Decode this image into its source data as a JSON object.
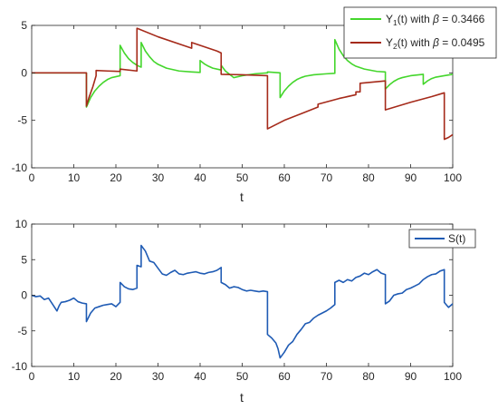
{
  "chart_data": [
    {
      "type": "line",
      "xlabel": "t",
      "ylabel": "",
      "xlim": [
        0,
        100
      ],
      "ylim": [
        -10,
        5
      ],
      "x_ticks": [
        0,
        10,
        20,
        30,
        40,
        50,
        60,
        70,
        80,
        90,
        100
      ],
      "y_ticks": [
        -10,
        -5,
        0,
        5
      ],
      "x_tick_labels": [
        "0",
        "10",
        "20",
        "30",
        "40",
        "50",
        "60",
        "70",
        "80",
        "90",
        "100"
      ],
      "y_tick_labels": [
        "-10",
        "-5",
        "0",
        "5"
      ],
      "grid": false,
      "legend_position": "top-right",
      "series": [
        {
          "name_parts": [
            "Y",
            "1",
            "(t) with ",
            "β",
            " = 0.3466"
          ],
          "color": "#44d62c",
          "points": [
            [
              0,
              0
            ],
            [
              13,
              0
            ],
            [
              13,
              -3.6
            ],
            [
              14,
              -2.6
            ],
            [
              15,
              -1.9
            ],
            [
              16,
              -1.4
            ],
            [
              17,
              -1.0
            ],
            [
              18,
              -0.7
            ],
            [
              19,
              -0.5
            ],
            [
              21,
              -0.3
            ],
            [
              21,
              2.9
            ],
            [
              22,
              2.1
            ],
            [
              23,
              1.5
            ],
            [
              24,
              1.1
            ],
            [
              25,
              0.8
            ],
            [
              26,
              0.6
            ],
            [
              26,
              3.2
            ],
            [
              27,
              2.3
            ],
            [
              28,
              1.7
            ],
            [
              29,
              1.2
            ],
            [
              30,
              0.9
            ],
            [
              32,
              0.5
            ],
            [
              35,
              0.2
            ],
            [
              38,
              0.1
            ],
            [
              40,
              0.05
            ],
            [
              40,
              1.3
            ],
            [
              41,
              0.95
            ],
            [
              42,
              0.7
            ],
            [
              43,
              0.5
            ],
            [
              45,
              0.3
            ],
            [
              45,
              0.8
            ],
            [
              46,
              0.2
            ],
            [
              48,
              -0.5
            ],
            [
              50,
              -0.3
            ],
            [
              53,
              -0.1
            ],
            [
              56,
              0
            ],
            [
              56,
              0.1
            ],
            [
              59,
              0
            ],
            [
              59,
              -2.6
            ],
            [
              60,
              -1.9
            ],
            [
              61,
              -1.4
            ],
            [
              62,
              -1.0
            ],
            [
              63,
              -0.7
            ],
            [
              64,
              -0.5
            ],
            [
              65,
              -0.35
            ],
            [
              67,
              -0.2
            ],
            [
              70,
              -0.1
            ],
            [
              72,
              -0.05
            ],
            [
              72,
              3.5
            ],
            [
              73,
              2.5
            ],
            [
              74,
              1.8
            ],
            [
              75,
              1.3
            ],
            [
              76,
              0.95
            ],
            [
              77,
              0.7
            ],
            [
              79,
              0.4
            ],
            [
              82,
              0.15
            ],
            [
              84,
              0.1
            ],
            [
              84,
              -1.7
            ],
            [
              85,
              -1.25
            ],
            [
              86,
              -0.9
            ],
            [
              87,
              -0.65
            ],
            [
              88,
              -0.5
            ],
            [
              90,
              -0.3
            ],
            [
              93,
              -0.15
            ],
            [
              93,
              -1.2
            ],
            [
              94,
              -0.85
            ],
            [
              95,
              -0.6
            ],
            [
              96,
              -0.45
            ],
            [
              98,
              -0.3
            ],
            [
              100,
              -0.15
            ]
          ]
        },
        {
          "name_parts": [
            "Y",
            "2",
            "(t) with ",
            "β",
            " = 0.0495"
          ],
          "color": "#a52a1a",
          "points": [
            [
              0,
              0
            ],
            [
              13,
              0
            ],
            [
              13,
              -3.5
            ],
            [
              13.6,
              -2.6
            ],
            [
              14.5,
              -1.5
            ],
            [
              15.3,
              -0.3
            ],
            [
              15.3,
              0.25
            ],
            [
              18,
              0.2
            ],
            [
              21,
              0.15
            ],
            [
              21,
              0.4
            ],
            [
              25,
              0.2
            ],
            [
              25,
              4.7
            ],
            [
              30,
              3.8
            ],
            [
              36,
              2.9
            ],
            [
              38,
              2.6
            ],
            [
              38,
              3.2
            ],
            [
              44,
              2.3
            ],
            [
              45,
              2.1
            ],
            [
              45,
              -0.15
            ],
            [
              50,
              -0.2
            ],
            [
              56,
              -0.3
            ],
            [
              56,
              -5.9
            ],
            [
              60,
              -5.0
            ],
            [
              64,
              -4.3
            ],
            [
              68,
              -3.6
            ],
            [
              68,
              -3.3
            ],
            [
              73,
              -2.7
            ],
            [
              77,
              -2.3
            ],
            [
              77,
              -2.0
            ],
            [
              78,
              -2.0
            ],
            [
              78,
              -1.1
            ],
            [
              84,
              -0.85
            ],
            [
              84,
              -3.9
            ],
            [
              90,
              -3.1
            ],
            [
              95,
              -2.5
            ],
            [
              98,
              -2.1
            ],
            [
              98,
              -7.0
            ],
            [
              99,
              -6.8
            ],
            [
              100,
              -6.5
            ]
          ]
        }
      ]
    },
    {
      "type": "line",
      "xlabel": "t",
      "ylabel": "",
      "xlim": [
        0,
        100
      ],
      "ylim": [
        -10,
        10
      ],
      "x_ticks": [
        0,
        10,
        20,
        30,
        40,
        50,
        60,
        70,
        80,
        90,
        100
      ],
      "y_ticks": [
        -10,
        -5,
        0,
        5,
        10
      ],
      "x_tick_labels": [
        "0",
        "10",
        "20",
        "30",
        "40",
        "50",
        "60",
        "70",
        "80",
        "90",
        "100"
      ],
      "y_tick_labels": [
        "-10",
        "-5",
        "0",
        "5",
        "10"
      ],
      "grid": false,
      "legend_position": "top-right",
      "series": [
        {
          "name_parts": [
            "S(t)"
          ],
          "color": "#1f5bb4",
          "points": [
            [
              0,
              0
            ],
            [
              1,
              -0.2
            ],
            [
              2,
              -0.1
            ],
            [
              3,
              -0.6
            ],
            [
              4,
              -0.4
            ],
            [
              5,
              -1.3
            ],
            [
              6,
              -2.2
            ],
            [
              6.5,
              -1.5
            ],
            [
              7,
              -1.0
            ],
            [
              8,
              -0.9
            ],
            [
              9,
              -0.7
            ],
            [
              10,
              -0.4
            ],
            [
              11,
              -0.9
            ],
            [
              12,
              -1.1
            ],
            [
              13,
              -1.2
            ],
            [
              13,
              -3.7
            ],
            [
              14,
              -2.5
            ],
            [
              15,
              -1.8
            ],
            [
              16,
              -1.6
            ],
            [
              17,
              -1.4
            ],
            [
              18,
              -1.3
            ],
            [
              19,
              -1.2
            ],
            [
              20,
              -1.6
            ],
            [
              21,
              -1.0
            ],
            [
              21,
              1.8
            ],
            [
              22,
              1.2
            ],
            [
              23,
              0.9
            ],
            [
              24,
              0.8
            ],
            [
              25,
              1.0
            ],
            [
              25,
              4.2
            ],
            [
              26,
              4.0
            ],
            [
              26,
              7.0
            ],
            [
              27,
              6.2
            ],
            [
              28,
              4.8
            ],
            [
              29,
              4.6
            ],
            [
              30,
              3.8
            ],
            [
              31,
              3.0
            ],
            [
              32,
              2.8
            ],
            [
              33,
              3.2
            ],
            [
              34,
              3.5
            ],
            [
              35,
              3.0
            ],
            [
              36,
              2.9
            ],
            [
              37,
              3.1
            ],
            [
              38,
              3.2
            ],
            [
              39,
              3.3
            ],
            [
              40,
              3.1
            ],
            [
              41,
              3.0
            ],
            [
              42,
              3.2
            ],
            [
              43,
              3.3
            ],
            [
              44,
              3.5
            ],
            [
              45,
              3.9
            ],
            [
              45,
              1.8
            ],
            [
              46,
              1.5
            ],
            [
              47,
              1.0
            ],
            [
              48,
              1.2
            ],
            [
              49,
              1.1
            ],
            [
              50,
              0.8
            ],
            [
              51,
              0.6
            ],
            [
              52,
              0.7
            ],
            [
              53,
              0.6
            ],
            [
              54,
              0.5
            ],
            [
              55,
              0.6
            ],
            [
              56,
              0.5
            ],
            [
              56,
              -5.5
            ],
            [
              57,
              -6.0
            ],
            [
              58,
              -6.7
            ],
            [
              58.5,
              -7.5
            ],
            [
              59,
              -8.8
            ],
            [
              60,
              -8.0
            ],
            [
              61,
              -7.0
            ],
            [
              62,
              -6.5
            ],
            [
              63,
              -5.5
            ],
            [
              64,
              -4.8
            ],
            [
              65,
              -4.0
            ],
            [
              66,
              -3.8
            ],
            [
              67,
              -3.2
            ],
            [
              68,
              -2.8
            ],
            [
              69,
              -2.5
            ],
            [
              70,
              -2.2
            ],
            [
              71,
              -1.8
            ],
            [
              72,
              -1.3
            ],
            [
              72,
              1.8
            ],
            [
              73,
              2.1
            ],
            [
              74,
              1.8
            ],
            [
              75,
              2.2
            ],
            [
              76,
              2.0
            ],
            [
              77,
              2.5
            ],
            [
              78,
              2.7
            ],
            [
              79,
              3.1
            ],
            [
              80,
              2.9
            ],
            [
              81,
              3.3
            ],
            [
              82,
              3.6
            ],
            [
              83,
              3.1
            ],
            [
              84,
              2.9
            ],
            [
              84,
              -1.2
            ],
            [
              85,
              -0.8
            ],
            [
              86,
              0
            ],
            [
              87,
              0.2
            ],
            [
              88,
              0.3
            ],
            [
              89,
              0.8
            ],
            [
              90,
              1.0
            ],
            [
              91,
              1.3
            ],
            [
              92,
              1.6
            ],
            [
              93,
              2.2
            ],
            [
              94,
              2.6
            ],
            [
              95,
              2.9
            ],
            [
              96,
              3.0
            ],
            [
              97,
              3.4
            ],
            [
              98,
              3.6
            ],
            [
              98,
              -1.0
            ],
            [
              99,
              -1.7
            ],
            [
              100,
              -1.2
            ]
          ]
        }
      ]
    }
  ]
}
